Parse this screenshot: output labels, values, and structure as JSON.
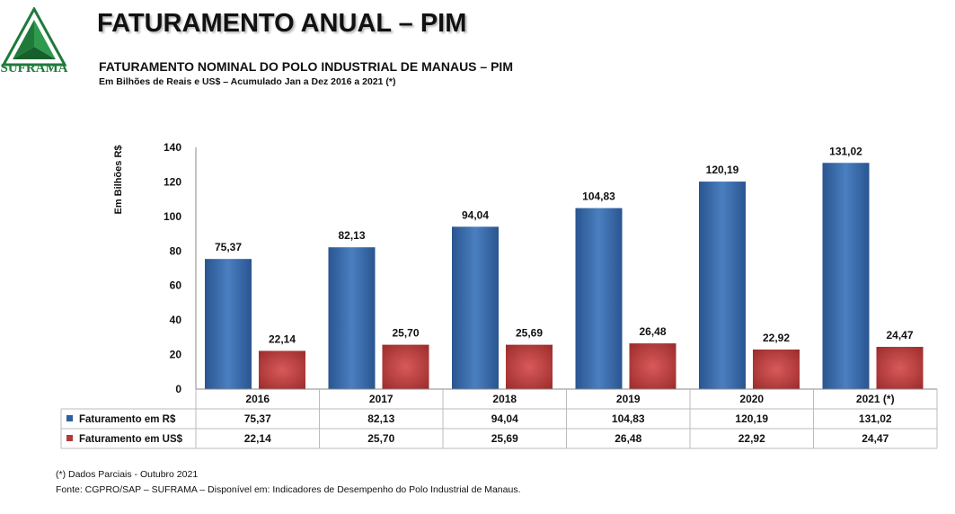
{
  "header": {
    "title": "FATURAMENTO ANUAL – PIM",
    "subtitle": "FATURAMENTO NOMINAL DO POLO INDUSTRIAL DE MANAUS –  PIM",
    "subsubtitle": "Em Bilhões de Reais e US$ – Acumulado Jan a Dez 2016 a 2021 (*)",
    "logo_text": "SUFRAMA"
  },
  "chart_data": {
    "type": "bar",
    "categories": [
      "2016",
      "2017",
      "2018",
      "2019",
      "2020",
      "2021 (*)"
    ],
    "series": [
      {
        "name": "Faturamento em R$",
        "values": [
          75.37,
          82.13,
          94.04,
          104.83,
          120.19,
          131.02
        ],
        "labels": [
          "75,37",
          "82,13",
          "94,04",
          "104,83",
          "120,19",
          "131,02"
        ],
        "color": "#2e5f9e"
      },
      {
        "name": "Faturamento em US$",
        "values": [
          22.14,
          25.7,
          25.69,
          26.48,
          22.92,
          24.47
        ],
        "labels": [
          "22,14",
          "25,70",
          "25,69",
          "26,48",
          "22,92",
          "24,47"
        ],
        "color": "#b33a3a"
      }
    ],
    "ylabel": "Em Bilhões R$",
    "ylim": [
      0,
      140
    ],
    "yticks": [
      0,
      20,
      40,
      60,
      80,
      100,
      120,
      140
    ],
    "grid": false,
    "legend": "data-table"
  },
  "footer": {
    "note": "(*) Dados Parciais - Outubro 2021",
    "source": "Fonte: CGPRO/SAP – SUFRAMA – Disponível em: Indicadores de Desempenho do Polo Industrial de Manaus."
  }
}
